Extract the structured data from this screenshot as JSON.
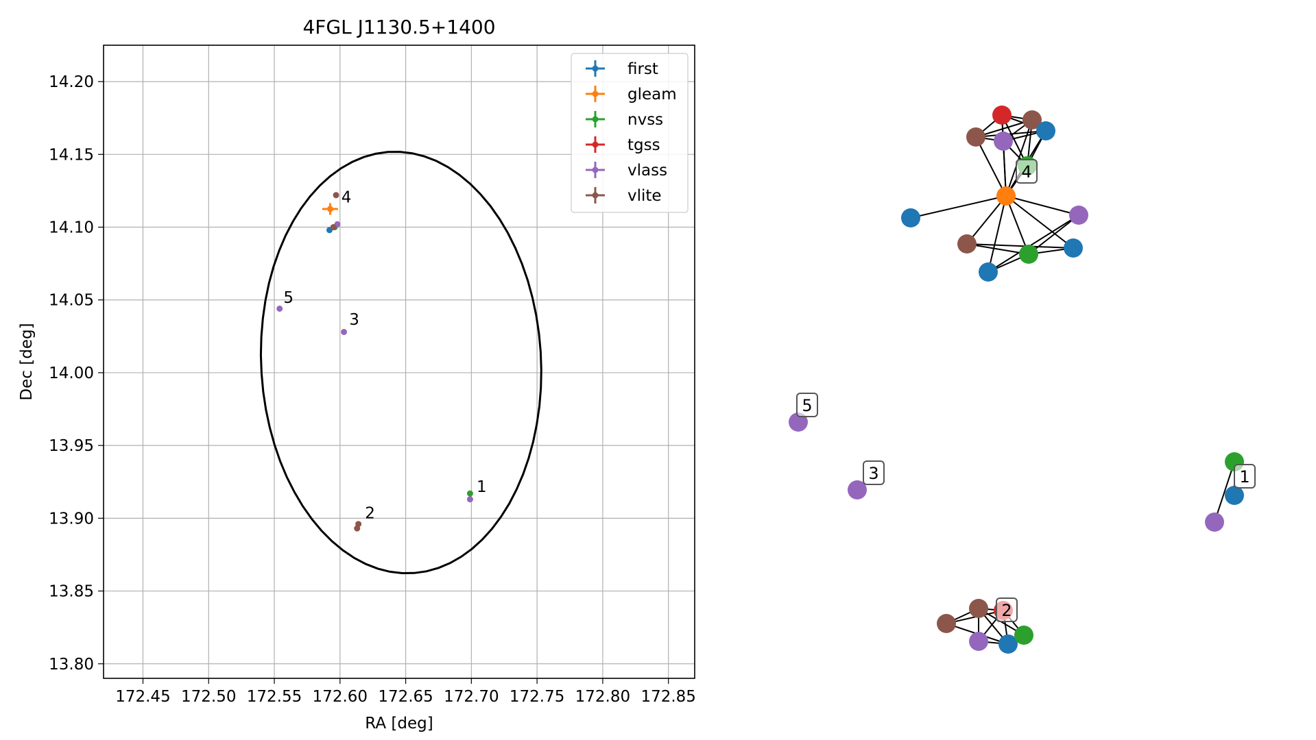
{
  "chart_data": [
    {
      "type": "scatter",
      "title": "4FGL J1130.5+1400",
      "xlabel": "RA [deg]",
      "ylabel": "Dec [deg]",
      "xlim": [
        172.42,
        172.87
      ],
      "ylim": [
        13.79,
        14.225
      ],
      "xticks": [
        172.45,
        172.5,
        172.55,
        172.6,
        172.65,
        172.7,
        172.75,
        172.8,
        172.85
      ],
      "xtick_labels": [
        "172.45",
        "172.50",
        "172.55",
        "172.60",
        "172.65",
        "172.70",
        "172.75",
        "172.80",
        "172.85"
      ],
      "yticks": [
        13.8,
        13.85,
        13.9,
        13.95,
        14.0,
        14.05,
        14.1,
        14.15,
        14.2
      ],
      "ytick_labels": [
        "13.80",
        "13.85",
        "13.90",
        "13.95",
        "14.00",
        "14.05",
        "14.10",
        "14.15",
        "14.20"
      ],
      "grid": true,
      "legend_position": "top-right",
      "ellipse": {
        "center": [
          172.6465,
          14.007
        ],
        "semi_axis_ra": 0.1065,
        "semi_axis_dec": 0.145,
        "rotation_deg": 4,
        "color": "#000000"
      },
      "series": [
        {
          "name": "first",
          "color": "#1f77b4",
          "points": [
            [
              172.592,
              14.098
            ]
          ]
        },
        {
          "name": "gleam",
          "color": "#ff7f0e",
          "points": [
            [
              172.5925,
              14.1125
            ]
          ],
          "xerr": 0.006,
          "yerr": 0.004
        },
        {
          "name": "nvss",
          "color": "#2ca02c",
          "points": [
            [
              172.596,
              14.1
            ],
            [
              172.699,
              13.917
            ]
          ]
        },
        {
          "name": "tgss",
          "color": "#d62728",
          "points": []
        },
        {
          "name": "vlass",
          "color": "#9467bd",
          "points": [
            [
              172.598,
              14.102
            ],
            [
              172.554,
              14.044
            ],
            [
              172.603,
              14.028
            ],
            [
              172.699,
              13.913
            ]
          ]
        },
        {
          "name": "vlite",
          "color": "#8c564b",
          "points": [
            [
              172.597,
              14.122
            ],
            [
              172.595,
              14.1
            ],
            [
              172.614,
              13.896
            ],
            [
              172.613,
              13.893
            ]
          ]
        }
      ],
      "annotations": [
        {
          "text": "4",
          "x": 172.601,
          "y": 14.117
        },
        {
          "text": "5",
          "x": 172.557,
          "y": 14.048
        },
        {
          "text": "3",
          "x": 172.607,
          "y": 14.033
        },
        {
          "text": "1",
          "x": 172.704,
          "y": 13.918
        },
        {
          "text": "2",
          "x": 172.619,
          "y": 13.9
        }
      ]
    },
    {
      "type": "network",
      "groups": [
        {
          "label": "4",
          "nodes": [
            {
              "color": "#d62728"
            },
            {
              "color": "#8c564b"
            },
            {
              "color": "#8c564b"
            },
            {
              "color": "#9467bd"
            },
            {
              "color": "#1f77b4"
            },
            {
              "color": "#2ca02c"
            },
            {
              "color": "#ff7f0e"
            },
            {
              "color": "#1f77b4"
            },
            {
              "color": "#9467bd"
            },
            {
              "color": "#8c564b"
            },
            {
              "color": "#2ca02c"
            },
            {
              "color": "#1f77b4"
            },
            {
              "color": "#1f77b4"
            }
          ],
          "edges": [
            [
              6,
              0
            ],
            [
              6,
              1
            ],
            [
              6,
              2
            ],
            [
              6,
              3
            ],
            [
              6,
              4
            ],
            [
              6,
              5
            ],
            [
              6,
              7
            ],
            [
              6,
              8
            ],
            [
              6,
              9
            ],
            [
              6,
              10
            ],
            [
              6,
              11
            ],
            [
              6,
              12
            ],
            [
              0,
              1
            ],
            [
              0,
              2
            ],
            [
              0,
              3
            ],
            [
              0,
              4
            ],
            [
              0,
              5
            ],
            [
              1,
              2
            ],
            [
              1,
              3
            ],
            [
              1,
              4
            ],
            [
              2,
              3
            ],
            [
              2,
              4
            ],
            [
              2,
              5
            ],
            [
              3,
              4
            ],
            [
              3,
              5
            ],
            [
              4,
              5
            ],
            [
              9,
              10
            ],
            [
              9,
              12
            ],
            [
              10,
              12
            ],
            [
              10,
              11
            ],
            [
              10,
              8
            ],
            [
              8,
              11
            ]
          ]
        },
        {
          "label": "5",
          "nodes": [
            {
              "color": "#9467bd"
            }
          ],
          "edges": []
        },
        {
          "label": "3",
          "nodes": [
            {
              "color": "#9467bd"
            }
          ],
          "edges": []
        },
        {
          "label": "1",
          "nodes": [
            {
              "color": "#2ca02c"
            },
            {
              "color": "#1f77b4"
            },
            {
              "color": "#9467bd"
            }
          ],
          "edges": [
            [
              0,
              1
            ],
            [
              0,
              2
            ]
          ]
        },
        {
          "label": "2",
          "nodes": [
            {
              "color": "#8c564b"
            },
            {
              "color": "#8c564b"
            },
            {
              "color": "#d62728"
            },
            {
              "color": "#9467bd"
            },
            {
              "color": "#1f77b4"
            },
            {
              "color": "#2ca02c"
            }
          ],
          "edges": [
            [
              0,
              1
            ],
            [
              0,
              2
            ],
            [
              0,
              4
            ],
            [
              1,
              2
            ],
            [
              1,
              3
            ],
            [
              1,
              4
            ],
            [
              1,
              5
            ],
            [
              2,
              3
            ],
            [
              2,
              4
            ],
            [
              2,
              5
            ],
            [
              3,
              4
            ],
            [
              4,
              5
            ]
          ]
        }
      ]
    }
  ]
}
